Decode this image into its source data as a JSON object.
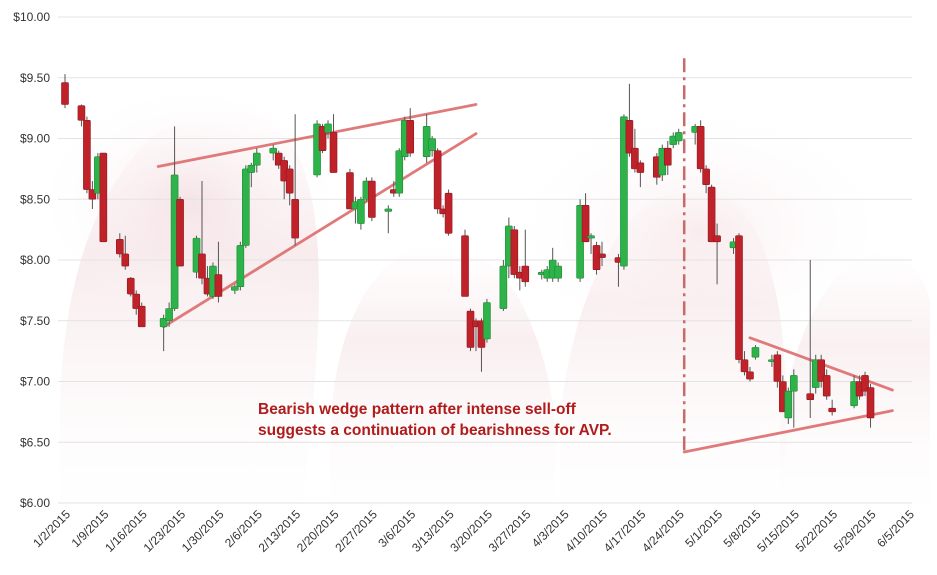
{
  "chart_data": {
    "type": "candlestick",
    "title": "",
    "xlabel": "",
    "ylabel": "",
    "ylim": [
      6.0,
      10.0
    ],
    "y_ticks": [
      "$6.00",
      "$6.50",
      "$7.00",
      "$7.50",
      "$8.00",
      "$8.50",
      "$9.00",
      "$9.50",
      "$10.00"
    ],
    "y_tick_values": [
      6.0,
      6.5,
      7.0,
      7.5,
      8.0,
      8.5,
      9.0,
      9.5,
      10.0
    ],
    "x_ticks": [
      "1/2/2015",
      "1/9/2015",
      "1/16/2015",
      "1/23/2015",
      "1/30/2015",
      "2/6/2015",
      "2/13/2015",
      "2/20/2015",
      "2/27/2015",
      "3/6/2015",
      "3/13/2015",
      "3/20/2015",
      "3/27/2015",
      "4/3/2015",
      "4/10/2015",
      "4/17/2015",
      "4/24/2015",
      "5/1/2015",
      "5/8/2015",
      "5/15/2015",
      "5/22/2015",
      "5/29/2015",
      "6/5/2015"
    ],
    "grid": true,
    "colors": {
      "up": "#2db34a",
      "down": "#c0222a",
      "trendline": "#e07a7a",
      "annotation": "#b01c1c",
      "grid": "#e3e3e3"
    },
    "annotation": {
      "lines": [
        "Bearish wedge pattern after intense sell-off",
        "suggests a continuation of bearishness for AVP."
      ]
    },
    "candles": [
      {
        "date": "1/2/2015",
        "open": 9.46,
        "high": 9.53,
        "low": 9.25,
        "close": 9.28
      },
      {
        "date": "1/5/2015",
        "open": 9.27,
        "high": 9.28,
        "low": 9.1,
        "close": 9.15
      },
      {
        "date": "1/6/2015",
        "open": 9.15,
        "high": 9.18,
        "low": 8.55,
        "close": 8.58
      },
      {
        "date": "1/7/2015",
        "open": 8.58,
        "high": 8.65,
        "low": 8.42,
        "close": 8.5
      },
      {
        "date": "1/8/2015",
        "open": 8.55,
        "high": 8.88,
        "low": 8.5,
        "close": 8.85
      },
      {
        "date": "1/9/2015",
        "open": 8.88,
        "high": 8.88,
        "low": 8.15,
        "close": 8.15
      },
      {
        "date": "1/12/2015",
        "open": 8.17,
        "high": 8.22,
        "low": 8.02,
        "close": 8.05
      },
      {
        "date": "1/13/2015",
        "open": 8.05,
        "high": 8.2,
        "low": 7.92,
        "close": 7.95
      },
      {
        "date": "1/14/2015",
        "open": 7.85,
        "high": 7.86,
        "low": 7.7,
        "close": 7.72
      },
      {
        "date": "1/15/2015",
        "open": 7.72,
        "high": 7.75,
        "low": 7.55,
        "close": 7.6
      },
      {
        "date": "1/16/2015",
        "open": 7.62,
        "high": 7.65,
        "low": 7.45,
        "close": 7.45
      },
      {
        "date": "1/20/2015",
        "open": 7.45,
        "high": 7.55,
        "low": 7.25,
        "close": 7.52
      },
      {
        "date": "1/21/2015",
        "open": 7.5,
        "high": 7.65,
        "low": 7.45,
        "close": 7.6
      },
      {
        "date": "1/22/2015",
        "open": 7.6,
        "high": 9.1,
        "low": 7.58,
        "close": 8.7
      },
      {
        "date": "1/23/2015",
        "open": 8.5,
        "high": 8.52,
        "low": 7.95,
        "close": 7.95
      },
      {
        "date": "1/26/2015",
        "open": 7.9,
        "high": 8.2,
        "low": 7.85,
        "close": 8.18
      },
      {
        "date": "1/27/2015",
        "open": 8.05,
        "high": 8.65,
        "low": 7.8,
        "close": 7.85
      },
      {
        "date": "1/28/2015",
        "open": 7.85,
        "high": 7.95,
        "low": 7.7,
        "close": 7.72
      },
      {
        "date": "1/29/2015",
        "open": 7.7,
        "high": 7.98,
        "low": 7.68,
        "close": 7.95
      },
      {
        "date": "1/30/2015",
        "open": 7.88,
        "high": 8.15,
        "low": 7.65,
        "close": 7.7
      },
      {
        "date": "2/2/2015",
        "open": 7.75,
        "high": 7.8,
        "low": 7.72,
        "close": 7.78
      },
      {
        "date": "2/3/2015",
        "open": 7.78,
        "high": 8.15,
        "low": 7.75,
        "close": 8.12
      },
      {
        "date": "2/4/2015",
        "open": 8.12,
        "high": 8.78,
        "low": 8.1,
        "close": 8.75
      },
      {
        "date": "2/5/2015",
        "open": 8.72,
        "high": 8.8,
        "low": 8.6,
        "close": 8.78
      },
      {
        "date": "2/6/2015",
        "open": 8.78,
        "high": 8.92,
        "low": 8.72,
        "close": 8.88
      },
      {
        "date": "2/9/2015",
        "open": 8.88,
        "high": 8.95,
        "low": 8.82,
        "close": 8.92
      },
      {
        "date": "2/10/2015",
        "open": 8.88,
        "high": 8.9,
        "low": 8.75,
        "close": 8.78
      },
      {
        "date": "2/11/2015",
        "open": 8.82,
        "high": 8.85,
        "low": 8.5,
        "close": 8.65
      },
      {
        "date": "2/12/2015",
        "open": 8.75,
        "high": 8.78,
        "low": 8.45,
        "close": 8.55
      },
      {
        "date": "2/13/2015",
        "open": 8.5,
        "high": 9.2,
        "low": 8.12,
        "close": 8.18
      },
      {
        "date": "2/17/2015",
        "open": 8.7,
        "high": 9.15,
        "low": 8.68,
        "close": 9.12
      },
      {
        "date": "2/18/2015",
        "open": 9.1,
        "high": 9.12,
        "low": 8.88,
        "close": 8.9
      },
      {
        "date": "2/19/2015",
        "open": 9.05,
        "high": 9.15,
        "low": 9.0,
        "close": 9.12
      },
      {
        "date": "2/20/2015",
        "open": 9.05,
        "high": 9.2,
        "low": 8.72,
        "close": 8.72
      },
      {
        "date": "2/23/2015",
        "open": 8.72,
        "high": 8.75,
        "low": 8.42,
        "close": 8.42
      },
      {
        "date": "2/24/2015",
        "open": 8.42,
        "high": 8.52,
        "low": 8.3,
        "close": 8.48
      },
      {
        "date": "2/25/2015",
        "open": 8.3,
        "high": 8.52,
        "low": 8.25,
        "close": 8.5
      },
      {
        "date": "2/26/2015",
        "open": 8.5,
        "high": 8.68,
        "low": 8.48,
        "close": 8.65
      },
      {
        "date": "2/27/2015",
        "open": 8.65,
        "high": 8.68,
        "low": 8.32,
        "close": 8.35
      },
      {
        "date": "3/2/2015",
        "open": 8.4,
        "high": 8.45,
        "low": 8.22,
        "close": 8.42
      },
      {
        "date": "3/3/2015",
        "open": 8.58,
        "high": 8.65,
        "low": 8.52,
        "close": 8.55
      },
      {
        "date": "3/4/2015",
        "open": 8.55,
        "high": 8.92,
        "low": 8.52,
        "close": 8.9
      },
      {
        "date": "3/5/2015",
        "open": 8.85,
        "high": 9.18,
        "low": 8.82,
        "close": 9.15
      },
      {
        "date": "3/6/2015",
        "open": 9.15,
        "high": 9.25,
        "low": 8.85,
        "close": 8.88
      },
      {
        "date": "3/9/2015",
        "open": 8.85,
        "high": 9.2,
        "low": 8.8,
        "close": 9.1
      },
      {
        "date": "3/10/2015",
        "open": 8.9,
        "high": 9.02,
        "low": 8.85,
        "close": 9.0
      },
      {
        "date": "3/11/2015",
        "open": 8.9,
        "high": 8.92,
        "low": 8.38,
        "close": 8.42
      },
      {
        "date": "3/12/2015",
        "open": 8.42,
        "high": 8.45,
        "low": 8.35,
        "close": 8.38
      },
      {
        "date": "3/13/2015",
        "open": 8.55,
        "high": 8.58,
        "low": 8.2,
        "close": 8.22
      },
      {
        "date": "3/16/2015",
        "open": 8.2,
        "high": 8.25,
        "low": 7.7,
        "close": 7.7
      },
      {
        "date": "3/17/2015",
        "open": 7.58,
        "high": 7.6,
        "low": 7.25,
        "close": 7.28
      },
      {
        "date": "3/18/2015",
        "open": 7.5,
        "high": 7.52,
        "low": 7.25,
        "close": 7.45
      },
      {
        "date": "3/19/2015",
        "open": 7.5,
        "high": 7.52,
        "low": 7.08,
        "close": 7.28
      },
      {
        "date": "3/20/2015",
        "open": 7.35,
        "high": 7.68,
        "low": 7.32,
        "close": 7.65
      },
      {
        "date": "3/23/2015",
        "open": 7.6,
        "high": 8.0,
        "low": 7.58,
        "close": 7.95
      },
      {
        "date": "3/24/2015",
        "open": 7.95,
        "high": 8.35,
        "low": 7.85,
        "close": 8.28
      },
      {
        "date": "3/25/2015",
        "open": 8.25,
        "high": 8.28,
        "low": 7.85,
        "close": 7.88
      },
      {
        "date": "3/26/2015",
        "open": 7.9,
        "high": 7.95,
        "low": 7.75,
        "close": 7.85
      },
      {
        "date": "3/27/2015",
        "open": 7.95,
        "high": 8.25,
        "low": 7.78,
        "close": 7.82
      },
      {
        "date": "3/30/2015",
        "open": 7.88,
        "high": 7.92,
        "low": 7.84,
        "close": 7.9
      },
      {
        "date": "3/31/2015",
        "open": 7.85,
        "high": 7.95,
        "low": 7.82,
        "close": 7.92
      },
      {
        "date": "4/1/2015",
        "open": 7.85,
        "high": 8.1,
        "low": 7.82,
        "close": 8.0
      },
      {
        "date": "4/2/2015",
        "open": 7.85,
        "high": 7.98,
        "low": 7.82,
        "close": 7.95
      },
      {
        "date": "4/6/2015",
        "open": 7.85,
        "high": 8.5,
        "low": 7.82,
        "close": 8.45
      },
      {
        "date": "4/7/2015",
        "open": 8.45,
        "high": 8.55,
        "low": 8.15,
        "close": 8.15
      },
      {
        "date": "4/8/2015",
        "open": 8.18,
        "high": 8.22,
        "low": 8.05,
        "close": 8.2
      },
      {
        "date": "4/9/2015",
        "open": 8.12,
        "high": 8.15,
        "low": 7.88,
        "close": 7.92
      },
      {
        "date": "4/10/2015",
        "open": 8.05,
        "high": 8.15,
        "low": 7.95,
        "close": 8.02
      },
      {
        "date": "4/13/2015",
        "open": 8.02,
        "high": 8.05,
        "low": 7.78,
        "close": 7.98
      },
      {
        "date": "4/14/2015",
        "open": 7.95,
        "high": 9.2,
        "low": 7.92,
        "close": 9.18
      },
      {
        "date": "4/15/2015",
        "open": 9.15,
        "high": 9.45,
        "low": 8.85,
        "close": 8.88
      },
      {
        "date": "4/16/2015",
        "open": 8.92,
        "high": 9.08,
        "low": 8.72,
        "close": 8.75
      },
      {
        "date": "4/17/2015",
        "open": 8.8,
        "high": 8.82,
        "low": 8.6,
        "close": 8.72
      },
      {
        "date": "4/20/2015",
        "open": 8.85,
        "high": 8.88,
        "low": 8.62,
        "close": 8.68
      },
      {
        "date": "4/21/2015",
        "open": 8.7,
        "high": 8.95,
        "low": 8.65,
        "close": 8.92
      },
      {
        "date": "4/22/2015",
        "open": 8.92,
        "high": 8.98,
        "low": 8.7,
        "close": 8.78
      },
      {
        "date": "4/23/2015",
        "open": 8.95,
        "high": 9.05,
        "low": 8.92,
        "close": 9.02
      },
      {
        "date": "4/24/2015",
        "open": 8.98,
        "high": 9.08,
        "low": 8.95,
        "close": 9.05
      },
      {
        "date": "4/27/2015",
        "open": 9.05,
        "high": 9.12,
        "low": 8.95,
        "close": 9.1
      },
      {
        "date": "4/28/2015",
        "open": 9.1,
        "high": 9.15,
        "low": 8.72,
        "close": 8.75
      },
      {
        "date": "4/29/2015",
        "open": 8.75,
        "high": 8.78,
        "low": 8.55,
        "close": 8.62
      },
      {
        "date": "4/30/2015",
        "open": 8.6,
        "high": 8.62,
        "low": 8.15,
        "close": 8.15
      },
      {
        "date": "5/1/2015",
        "open": 8.2,
        "high": 8.3,
        "low": 7.8,
        "close": 8.15
      },
      {
        "date": "5/4/2015",
        "open": 8.1,
        "high": 8.18,
        "low": 8.05,
        "close": 8.15
      },
      {
        "date": "5/5/2015",
        "open": 8.2,
        "high": 8.22,
        "low": 7.15,
        "close": 7.18
      },
      {
        "date": "5/6/2015",
        "open": 7.18,
        "high": 7.25,
        "low": 7.05,
        "close": 7.08
      },
      {
        "date": "5/7/2015",
        "open": 7.08,
        "high": 7.12,
        "low": 7.0,
        "close": 7.02
      },
      {
        "date": "5/8/2015",
        "open": 7.2,
        "high": 7.3,
        "low": 7.18,
        "close": 7.28
      },
      {
        "date": "5/11/2015",
        "open": 7.18,
        "high": 7.22,
        "low": 7.12,
        "close": 7.18
      },
      {
        "date": "5/12/2015",
        "open": 7.22,
        "high": 7.25,
        "low": 6.95,
        "close": 7.0
      },
      {
        "date": "5/13/2015",
        "open": 7.0,
        "high": 7.05,
        "low": 6.75,
        "close": 6.75
      },
      {
        "date": "5/14/2015",
        "open": 6.7,
        "high": 6.95,
        "low": 6.65,
        "close": 6.92
      },
      {
        "date": "5/15/2015",
        "open": 6.92,
        "high": 7.1,
        "low": 6.62,
        "close": 7.05
      },
      {
        "date": "5/18/2015",
        "open": 6.9,
        "high": 8.0,
        "low": 6.7,
        "close": 6.85
      },
      {
        "date": "5/19/2015",
        "open": 6.95,
        "high": 7.22,
        "low": 6.9,
        "close": 7.18
      },
      {
        "date": "5/20/2015",
        "open": 7.18,
        "high": 7.22,
        "low": 6.95,
        "close": 7.0
      },
      {
        "date": "5/21/2015",
        "open": 7.05,
        "high": 7.1,
        "low": 6.85,
        "close": 6.88
      },
      {
        "date": "5/22/2015",
        "open": 6.78,
        "high": 6.85,
        "low": 6.72,
        "close": 6.75
      },
      {
        "date": "5/26/2015",
        "open": 6.8,
        "high": 7.05,
        "low": 6.78,
        "close": 7.0
      },
      {
        "date": "5/27/2015",
        "open": 7.0,
        "high": 7.05,
        "low": 6.85,
        "close": 6.88
      },
      {
        "date": "5/28/2015",
        "open": 7.05,
        "high": 7.08,
        "low": 6.88,
        "close": 6.92
      },
      {
        "date": "5/29/2015",
        "open": 6.95,
        "high": 6.98,
        "low": 6.62,
        "close": 6.7
      }
    ],
    "trendlines": [
      {
        "name": "wedge1-upper",
        "from": {
          "date": "1/19/2015",
          "price": 8.77
        },
        "to": {
          "date": "3/18/2015",
          "price": 9.28
        }
      },
      {
        "name": "wedge1-lower",
        "from": {
          "date": "1/20/2015",
          "price": 7.45
        },
        "to": {
          "date": "3/18/2015",
          "price": 9.04
        }
      },
      {
        "name": "wedge2-upper",
        "from": {
          "date": "5/7/2015",
          "price": 7.36
        },
        "to": {
          "date": "6/2/2015",
          "price": 6.93
        }
      },
      {
        "name": "wedge2-lower",
        "from": {
          "date": "4/25/2015",
          "price": 6.42
        },
        "to": {
          "date": "6/2/2015",
          "price": 6.76
        }
      }
    ],
    "vertical_marker": {
      "date": "4/25/2015",
      "from_price": 9.66,
      "to_price": 6.42
    }
  }
}
